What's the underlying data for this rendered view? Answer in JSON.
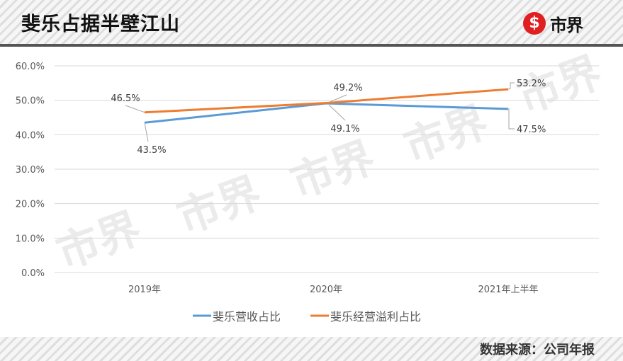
{
  "header": {
    "title": "斐乐占据半壁江山",
    "logo_icon": "shibiejie-s-logo-icon",
    "logo_text": "市界",
    "brand_color": "#e02020"
  },
  "footer": {
    "source": "数据来源：公司年报"
  },
  "watermark": "市界",
  "chart_data": {
    "type": "line",
    "title": "斐乐占据半壁江山",
    "xlabel": "",
    "ylabel": "",
    "categories": [
      "2019年",
      "2020年",
      "2021年上半年"
    ],
    "series": [
      {
        "name": "斐乐营收占比",
        "values": [
          43.5,
          49.1,
          47.5
        ],
        "labels": [
          "43.5%",
          "49.1%",
          "47.5%"
        ],
        "color": "#5b9bd5"
      },
      {
        "name": "斐乐经营溢利占比",
        "values": [
          46.5,
          49.2,
          53.2
        ],
        "labels": [
          "46.5%",
          "49.2%",
          "53.2%"
        ],
        "color": "#ed7d31"
      }
    ],
    "yticks": [
      "0.0%",
      "10.0%",
      "20.0%",
      "30.0%",
      "40.0%",
      "50.0%",
      "60.0%"
    ],
    "ylim": [
      0,
      60
    ],
    "grid": true,
    "legend_position": "bottom"
  }
}
